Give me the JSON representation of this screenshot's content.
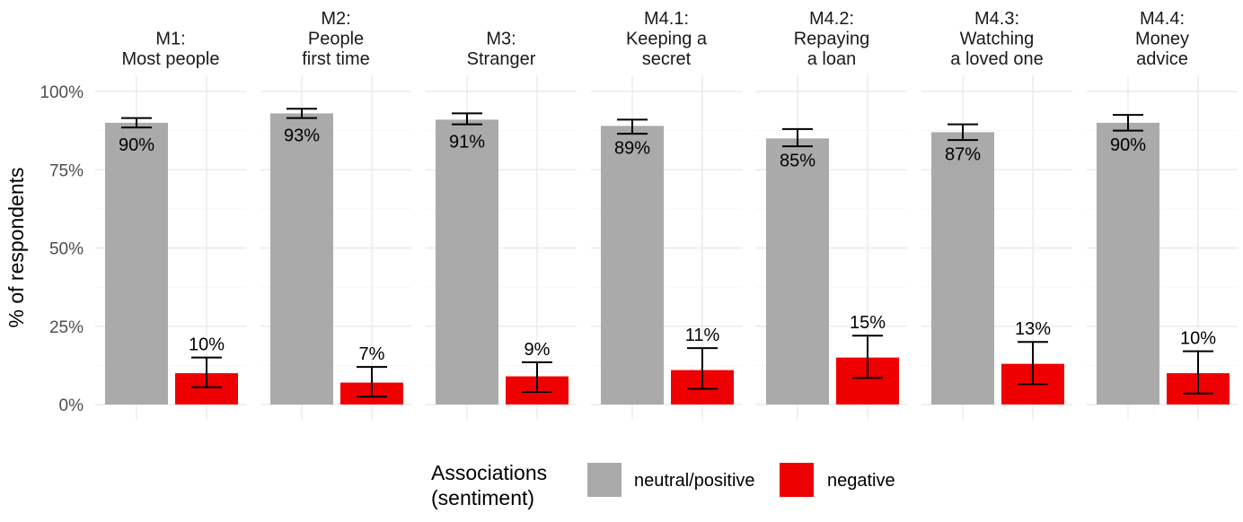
{
  "chart_data": {
    "type": "bar",
    "ylabel": "% of respondents",
    "ylim": [
      0,
      100
    ],
    "yticks": [
      0,
      25,
      50,
      75,
      100
    ],
    "ytick_labels": [
      "0%",
      "25%",
      "50%",
      "75%",
      "100%"
    ],
    "grid": true,
    "legend": {
      "title_lines": [
        "Associations",
        "(sentiment)"
      ],
      "position": "bottom",
      "entries": [
        {
          "name": "neutral/positive",
          "color": "#aaaaaa"
        },
        {
          "name": "negative",
          "color": "#ee0000"
        }
      ]
    },
    "facets": [
      {
        "title_lines": [
          "M1:",
          "Most people"
        ],
        "bars": [
          {
            "series": "neutral/positive",
            "value": 90,
            "label": "90%",
            "err": [
              88.5,
              91.5
            ]
          },
          {
            "series": "negative",
            "value": 10,
            "label": "10%",
            "err": [
              5.5,
              15
            ]
          }
        ]
      },
      {
        "title_lines": [
          "M2:",
          "People",
          "first time"
        ],
        "bars": [
          {
            "series": "neutral/positive",
            "value": 93,
            "label": "93%",
            "err": [
              91.5,
              94.5
            ]
          },
          {
            "series": "negative",
            "value": 7,
            "label": "7%",
            "err": [
              2.5,
              12
            ]
          }
        ]
      },
      {
        "title_lines": [
          "M3:",
          "Stranger"
        ],
        "bars": [
          {
            "series": "neutral/positive",
            "value": 91,
            "label": "91%",
            "err": [
              89.5,
              93
            ]
          },
          {
            "series": "negative",
            "value": 9,
            "label": "9%",
            "err": [
              4,
              13.5
            ]
          }
        ]
      },
      {
        "title_lines": [
          "M4.1:",
          "Keeping a",
          "secret"
        ],
        "bars": [
          {
            "series": "neutral/positive",
            "value": 89,
            "label": "89%",
            "err": [
              86.5,
              91
            ]
          },
          {
            "series": "negative",
            "value": 11,
            "label": "11%",
            "err": [
              5,
              18
            ]
          }
        ]
      },
      {
        "title_lines": [
          "M4.2:",
          "Repaying",
          "a loan"
        ],
        "bars": [
          {
            "series": "neutral/positive",
            "value": 85,
            "label": "85%",
            "err": [
              82.5,
              88
            ]
          },
          {
            "series": "negative",
            "value": 15,
            "label": "15%",
            "err": [
              8.5,
              22
            ]
          }
        ]
      },
      {
        "title_lines": [
          "M4.3:",
          "Watching",
          "a loved one"
        ],
        "bars": [
          {
            "series": "neutral/positive",
            "value": 87,
            "label": "87%",
            "err": [
              84.5,
              89.5
            ]
          },
          {
            "series": "negative",
            "value": 13,
            "label": "13%",
            "err": [
              6.5,
              20
            ]
          }
        ]
      },
      {
        "title_lines": [
          "M4.4:",
          "Money",
          "advice"
        ],
        "bars": [
          {
            "series": "neutral/positive",
            "value": 90,
            "label": "90%",
            "err": [
              87.5,
              92.5
            ]
          },
          {
            "series": "negative",
            "value": 10,
            "label": "10%",
            "err": [
              3.5,
              17
            ]
          }
        ]
      }
    ]
  }
}
